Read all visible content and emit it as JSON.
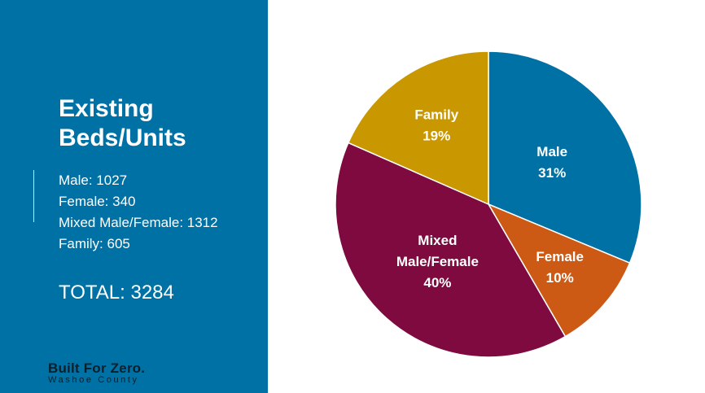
{
  "panel": {
    "title": "Existing Beds/Units",
    "stats": [
      "Male: 1027",
      "Female: 340",
      "Mixed Male/Female: 1312",
      "Family: 605"
    ],
    "total": "TOTAL: 3284",
    "logo": {
      "title": "Built For Zero.",
      "subtitle": "Washoe County"
    }
  },
  "chart_data": {
    "type": "pie",
    "title": "",
    "slices": [
      {
        "label": "Male",
        "value": 1027,
        "percent": "31%",
        "color": "#0071a4"
      },
      {
        "label": "Female",
        "value": 340,
        "percent": "10%",
        "color": "#cc5a14"
      },
      {
        "label": "Mixed Male/Female",
        "value": 1312,
        "percent": "40%",
        "color": "#7e0a40"
      },
      {
        "label": "Family",
        "value": 605,
        "percent": "19%",
        "color": "#c99700"
      }
    ],
    "start_angle": "12 o'clock",
    "direction": "clockwise",
    "legend": "none (labels on slices)"
  }
}
